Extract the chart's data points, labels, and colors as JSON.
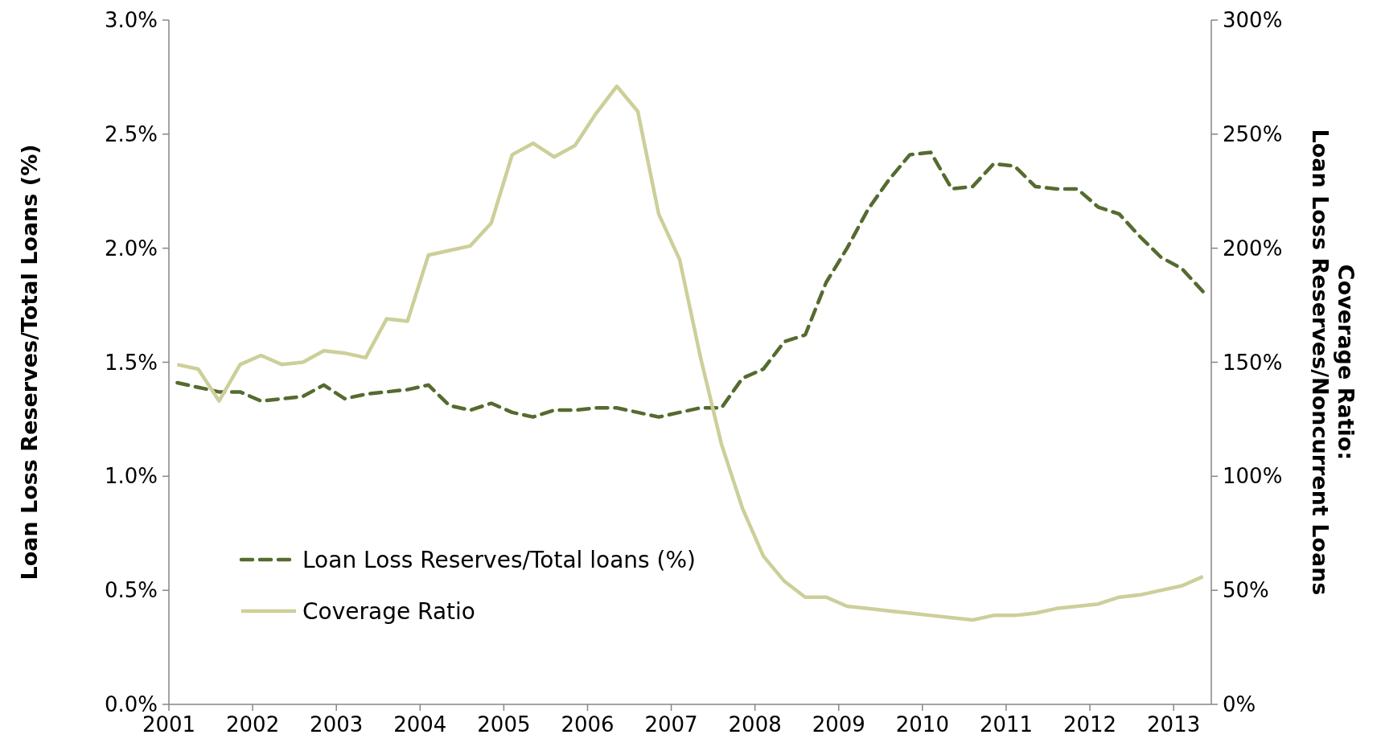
{
  "chart_data": {
    "type": "line",
    "ylabel": "Loan Loss Reserves/Total Loans (%)",
    "y2label": "Coverage Ratio:\nLoan Loss Reserves/Noncurrent Loans",
    "x": [
      2001.1,
      2001.35,
      2001.6,
      2001.85,
      2002.1,
      2002.35,
      2002.6,
      2002.85,
      2003.1,
      2003.35,
      2003.6,
      2003.85,
      2004.1,
      2004.35,
      2004.6,
      2004.85,
      2005.1,
      2005.35,
      2005.6,
      2005.85,
      2006.1,
      2006.35,
      2006.6,
      2006.85,
      2007.1,
      2007.35,
      2007.6,
      2007.85,
      2008.1,
      2008.35,
      2008.6,
      2008.85,
      2009.1,
      2009.35,
      2009.6,
      2009.85,
      2010.1,
      2010.35,
      2010.6,
      2010.85,
      2011.1,
      2011.35,
      2011.6,
      2011.85,
      2012.1,
      2012.35,
      2012.6,
      2012.85,
      2013.1,
      2013.35
    ],
    "series": [
      {
        "name": "Loan Loss Reserves/Total loans (%)",
        "color": "#556b2f",
        "line_style": "dashed",
        "values": [
          1.41,
          1.39,
          1.37,
          1.37,
          1.33,
          1.34,
          1.35,
          1.4,
          1.34,
          1.36,
          1.37,
          1.38,
          1.4,
          1.31,
          1.29,
          1.32,
          1.28,
          1.26,
          1.29,
          1.29,
          1.3,
          1.3,
          1.28,
          1.26,
          1.28,
          1.3,
          1.3,
          1.43,
          1.47,
          1.59,
          1.62,
          1.85,
          2.0,
          2.17,
          2.3,
          2.41,
          2.42,
          2.26,
          2.27,
          2.37,
          2.36,
          2.27,
          2.26,
          2.26,
          2.18,
          2.15,
          2.05,
          1.96,
          1.91,
          1.81
        ]
      },
      {
        "name": "Coverage Ratio",
        "color": "#cdcf9a",
        "line_style": "solid",
        "axis": "y2",
        "values": [
          149,
          147,
          133,
          149,
          153,
          149,
          150,
          155,
          154,
          152,
          169,
          168,
          197,
          199,
          201,
          211,
          241,
          246,
          240,
          245,
          259,
          271,
          260,
          215,
          195,
          152,
          114,
          86,
          65,
          54,
          47,
          47,
          43,
          42,
          41,
          40,
          39,
          38,
          37,
          39,
          39,
          40,
          42,
          43,
          44,
          47,
          48,
          50,
          52,
          56
        ]
      }
    ],
    "xlim": [
      2001,
      2013.45
    ],
    "xticks": [
      2001,
      2002,
      2003,
      2004,
      2005,
      2006,
      2007,
      2008,
      2009,
      2010,
      2011,
      2012,
      2013
    ],
    "ylim": [
      0,
      3
    ],
    "yticks": [
      {
        "value": 0,
        "label": "0.0%"
      },
      {
        "value": 0.5,
        "label": "0.5%"
      },
      {
        "value": 1,
        "label": "1.0%"
      },
      {
        "value": 1.5,
        "label": "1.5%"
      },
      {
        "value": 2,
        "label": "2.0%"
      },
      {
        "value": 2.5,
        "label": "2.5%"
      },
      {
        "value": 3,
        "label": "3.0%"
      }
    ],
    "y2lim": [
      0,
      300
    ],
    "y2ticks": [
      {
        "value": 0,
        "label": "0%"
      },
      {
        "value": 50,
        "label": "50%"
      },
      {
        "value": 100,
        "label": "100%"
      },
      {
        "value": 150,
        "label": "150%"
      },
      {
        "value": 200,
        "label": "200%"
      },
      {
        "value": 250,
        "label": "250%"
      },
      {
        "value": 300,
        "label": "300%"
      }
    ],
    "grid": false,
    "legend": "bottom left"
  }
}
